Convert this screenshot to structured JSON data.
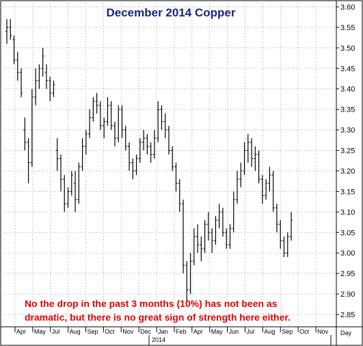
{
  "chart_data": {
    "type": "ohlc",
    "title": "December 2014 Copper",
    "annotation": [
      "No the drop in the past 3 months (10%) has not been as",
      "dramatic, but there is no great sign of strength here either."
    ],
    "ylim": [
      2.82,
      3.62
    ],
    "yticks": [
      "2.85",
      "2.90",
      "2.95",
      "3.00",
      "3.05",
      "3.10",
      "3.15",
      "3.20",
      "3.25",
      "3.30",
      "3.35",
      "3.40",
      "3.45",
      "3.50",
      "3.55",
      "3.60"
    ],
    "xticks": [
      "Apr",
      "May",
      "Jul",
      "Aug",
      "Sep",
      "Oct",
      "Nov",
      "Dec",
      "Jan",
      "Feb",
      "Apr",
      "May",
      "Jun",
      "Jul",
      "Aug",
      "Sep",
      "Oct",
      "Nov"
    ],
    "year_label": "2014",
    "right_axis_label": "Day",
    "grid": true,
    "series": [
      {
        "values": [
          [
            3.54,
            3.57,
            3.51,
            3.55
          ],
          [
            3.55,
            3.57,
            3.52,
            3.53
          ],
          [
            3.52,
            3.53,
            3.46,
            3.47
          ],
          [
            3.47,
            3.49,
            3.42,
            3.44
          ],
          [
            3.44,
            3.45,
            3.38,
            3.39
          ],
          [
            3.3,
            3.33,
            3.25,
            3.27
          ],
          [
            3.27,
            3.28,
            3.17,
            3.22
          ],
          [
            3.22,
            3.4,
            3.21,
            3.38
          ],
          [
            3.38,
            3.45,
            3.36,
            3.42
          ],
          [
            3.42,
            3.46,
            3.4,
            3.45
          ],
          [
            3.45,
            3.5,
            3.43,
            3.48
          ],
          [
            3.44,
            3.46,
            3.4,
            3.42
          ],
          [
            3.42,
            3.43,
            3.37,
            3.39
          ],
          [
            3.39,
            3.42,
            3.38,
            3.41
          ],
          [
            3.25,
            3.28,
            3.2,
            3.23
          ],
          [
            3.23,
            3.24,
            3.15,
            3.18
          ],
          [
            3.18,
            3.19,
            3.1,
            3.12
          ],
          [
            3.12,
            3.16,
            3.11,
            3.15
          ],
          [
            3.15,
            3.2,
            3.14,
            3.19
          ],
          [
            3.17,
            3.2,
            3.1,
            3.13
          ],
          [
            3.13,
            3.22,
            3.12,
            3.21
          ],
          [
            3.21,
            3.28,
            3.2,
            3.26
          ],
          [
            3.26,
            3.3,
            3.24,
            3.29
          ],
          [
            3.29,
            3.35,
            3.28,
            3.33
          ],
          [
            3.33,
            3.38,
            3.32,
            3.37
          ],
          [
            3.37,
            3.39,
            3.34,
            3.36
          ],
          [
            3.36,
            3.37,
            3.3,
            3.31
          ],
          [
            3.31,
            3.33,
            3.28,
            3.32
          ],
          [
            3.32,
            3.38,
            3.31,
            3.36
          ],
          [
            3.36,
            3.37,
            3.3,
            3.31
          ],
          [
            3.31,
            3.32,
            3.26,
            3.28
          ],
          [
            3.28,
            3.36,
            3.27,
            3.35
          ],
          [
            3.35,
            3.36,
            3.28,
            3.3
          ],
          [
            3.3,
            3.31,
            3.25,
            3.26
          ],
          [
            3.26,
            3.27,
            3.2,
            3.22
          ],
          [
            3.22,
            3.23,
            3.18,
            3.2
          ],
          [
            3.2,
            3.24,
            3.19,
            3.23
          ],
          [
            3.23,
            3.28,
            3.22,
            3.27
          ],
          [
            3.27,
            3.3,
            3.25,
            3.28
          ],
          [
            3.28,
            3.29,
            3.24,
            3.26
          ],
          [
            3.26,
            3.27,
            3.22,
            3.24
          ],
          [
            3.24,
            3.3,
            3.23,
            3.28
          ],
          [
            3.28,
            3.37,
            3.27,
            3.35
          ],
          [
            3.35,
            3.36,
            3.3,
            3.32
          ],
          [
            3.32,
            3.34,
            3.28,
            3.3
          ],
          [
            3.3,
            3.31,
            3.24,
            3.25
          ],
          [
            3.25,
            3.26,
            3.2,
            3.21
          ],
          [
            3.21,
            3.22,
            3.15,
            3.17
          ],
          [
            3.17,
            3.18,
            3.1,
            3.12
          ],
          [
            3.12,
            3.13,
            2.95,
            2.97
          ],
          [
            2.97,
            2.98,
            2.88,
            2.91
          ],
          [
            2.91,
            3.0,
            2.9,
            2.98
          ],
          [
            2.98,
            3.06,
            2.97,
            3.04
          ],
          [
            3.04,
            3.07,
            3.0,
            3.02
          ],
          [
            3.02,
            3.04,
            2.98,
            3.01
          ],
          [
            3.01,
            3.08,
            3.0,
            3.07
          ],
          [
            3.07,
            3.1,
            3.03,
            3.05
          ],
          [
            3.05,
            3.06,
            3.0,
            3.03
          ],
          [
            3.03,
            3.09,
            3.02,
            3.08
          ],
          [
            3.08,
            3.12,
            3.06,
            3.1
          ],
          [
            3.1,
            3.11,
            3.04,
            3.05
          ],
          [
            3.05,
            3.06,
            3.01,
            3.02
          ],
          [
            3.02,
            3.07,
            3.01,
            3.06
          ],
          [
            3.06,
            3.15,
            3.05,
            3.13
          ],
          [
            3.13,
            3.2,
            3.12,
            3.18
          ],
          [
            3.18,
            3.22,
            3.16,
            3.2
          ],
          [
            3.2,
            3.27,
            3.19,
            3.25
          ],
          [
            3.25,
            3.29,
            3.22,
            3.27
          ],
          [
            3.27,
            3.28,
            3.21,
            3.23
          ],
          [
            3.23,
            3.26,
            3.2,
            3.24
          ],
          [
            3.24,
            3.25,
            3.17,
            3.18
          ],
          [
            3.18,
            3.19,
            3.12,
            3.14
          ],
          [
            3.14,
            3.18,
            3.13,
            3.17
          ],
          [
            3.17,
            3.21,
            3.15,
            3.19
          ],
          [
            3.19,
            3.2,
            3.1,
            3.11
          ],
          [
            3.11,
            3.12,
            3.05,
            3.07
          ],
          [
            3.07,
            3.08,
            3.01,
            3.03
          ],
          [
            3.03,
            3.04,
            2.99,
            3.0
          ],
          [
            3.0,
            3.05,
            2.99,
            3.04
          ],
          [
            3.04,
            3.1,
            3.03,
            3.08
          ]
        ]
      }
    ]
  }
}
